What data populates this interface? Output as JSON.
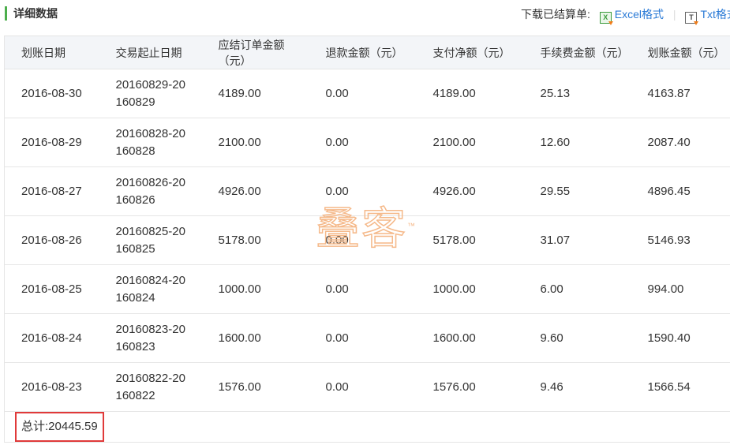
{
  "section_title": "详细数据",
  "download": {
    "label": "下载已结算单:",
    "excel": "Excel格式",
    "txt": "Txt格式"
  },
  "columns": [
    "划账日期",
    "交易起止日期",
    "应结订单金额（元）",
    "退款金额（元）",
    "支付净额（元）",
    "手续费金额（元）",
    "划账金额（元）"
  ],
  "rows": [
    [
      "2016-08-30",
      "20160829-20160829",
      "4189.00",
      "0.00",
      "4189.00",
      "25.13",
      "4163.87"
    ],
    [
      "2016-08-29",
      "20160828-20160828",
      "2100.00",
      "0.00",
      "2100.00",
      "12.60",
      "2087.40"
    ],
    [
      "2016-08-27",
      "20160826-20160826",
      "4926.00",
      "0.00",
      "4926.00",
      "29.55",
      "4896.45"
    ],
    [
      "2016-08-26",
      "20160825-20160825",
      "5178.00",
      "0.00",
      "5178.00",
      "31.07",
      "5146.93"
    ],
    [
      "2016-08-25",
      "20160824-20160824",
      "1000.00",
      "0.00",
      "1000.00",
      "6.00",
      "994.00"
    ],
    [
      "2016-08-24",
      "20160823-20160823",
      "1600.00",
      "0.00",
      "1600.00",
      "9.60",
      "1590.40"
    ],
    [
      "2016-08-23",
      "20160822-20160822",
      "1576.00",
      "0.00",
      "1576.00",
      "9.46",
      "1566.54"
    ]
  ],
  "total": "总计:20445.59",
  "watermark": {
    "text": "叠客",
    "tm": "™"
  },
  "colors": {
    "accent": "#4cae4c",
    "link": "#2a7ad6",
    "highlight": "#e03a3a"
  }
}
